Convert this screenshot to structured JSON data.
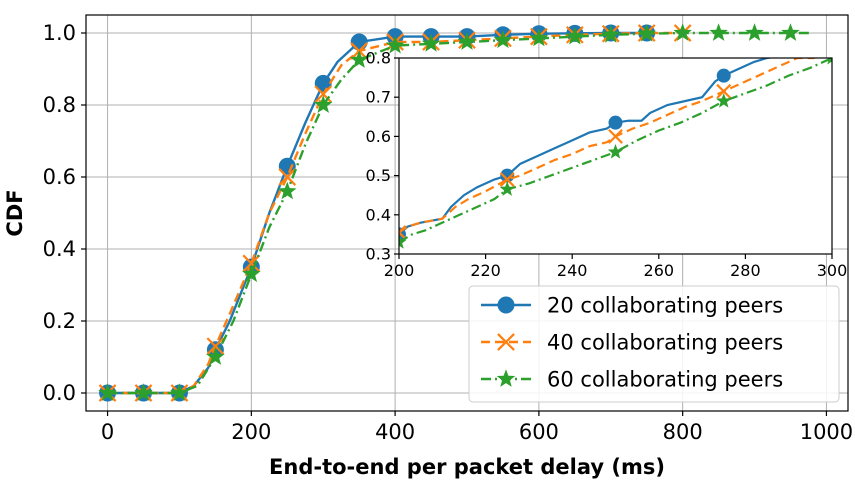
{
  "chart_data": {
    "type": "line",
    "xlabel": "End-to-end per packet delay (ms)",
    "ylabel": "CDF",
    "xlim": [
      -30,
      1030
    ],
    "ylim": [
      -0.05,
      1.05
    ],
    "x_ticks": [
      0,
      200,
      400,
      600,
      800,
      1000
    ],
    "y_ticks": [
      0.0,
      0.2,
      0.4,
      0.6,
      0.8,
      1.0
    ],
    "x_tick_labels": [
      "0",
      "200",
      "400",
      "600",
      "800",
      "1000"
    ],
    "y_tick_labels": [
      "0.0",
      "0.2",
      "0.4",
      "0.6",
      "0.8",
      "1.0"
    ],
    "grid": true,
    "legend_position": "bottom-right",
    "series": [
      {
        "name": "20 collaborating peers",
        "color": "#1f77b4",
        "line_style": "solid",
        "marker": "circle",
        "points": [
          [
            0,
            0
          ],
          [
            50,
            0
          ],
          [
            100,
            0
          ],
          [
            120,
            0.02
          ],
          [
            140,
            0.07
          ],
          [
            150,
            0.12
          ],
          [
            170,
            0.2
          ],
          [
            200,
            0.35
          ],
          [
            225,
            0.5
          ],
          [
            250,
            0.63
          ],
          [
            275,
            0.75
          ],
          [
            300,
            0.86
          ],
          [
            320,
            0.92
          ],
          [
            350,
            0.975
          ],
          [
            400,
            0.99
          ],
          [
            450,
            0.99
          ],
          [
            500,
            0.99
          ],
          [
            550,
            0.995
          ],
          [
            600,
            0.998
          ],
          [
            650,
            0.999
          ],
          [
            700,
            1.0
          ],
          [
            750,
            1.0
          ]
        ],
        "markers_x": [
          0,
          50,
          100,
          150,
          200,
          250,
          300,
          350,
          400,
          450,
          500,
          550,
          600,
          650,
          700,
          750
        ]
      },
      {
        "name": "40 collaborating peers",
        "color": "#ff7f0e",
        "line_style": "dashed",
        "marker": "x",
        "points": [
          [
            0,
            0
          ],
          [
            50,
            0
          ],
          [
            100,
            0
          ],
          [
            120,
            0.02
          ],
          [
            140,
            0.08
          ],
          [
            150,
            0.13
          ],
          [
            170,
            0.22
          ],
          [
            200,
            0.36
          ],
          [
            225,
            0.5
          ],
          [
            250,
            0.6
          ],
          [
            275,
            0.72
          ],
          [
            300,
            0.83
          ],
          [
            325,
            0.91
          ],
          [
            350,
            0.95
          ],
          [
            400,
            0.975
          ],
          [
            450,
            0.975
          ],
          [
            500,
            0.98
          ],
          [
            550,
            0.985
          ],
          [
            600,
            0.99
          ],
          [
            650,
            0.995
          ],
          [
            700,
            0.998
          ],
          [
            750,
            1.0
          ],
          [
            800,
            1.0
          ]
        ],
        "markers_x": [
          0,
          50,
          100,
          150,
          200,
          250,
          300,
          350,
          400,
          450,
          500,
          550,
          600,
          650,
          700,
          750,
          800
        ]
      },
      {
        "name": "60 collaborating peers",
        "color": "#2ca02c",
        "line_style": "dashdot",
        "marker": "star",
        "points": [
          [
            0,
            0
          ],
          [
            50,
            0
          ],
          [
            100,
            0
          ],
          [
            125,
            0.02
          ],
          [
            150,
            0.1
          ],
          [
            175,
            0.2
          ],
          [
            200,
            0.33
          ],
          [
            225,
            0.46
          ],
          [
            250,
            0.56
          ],
          [
            275,
            0.69
          ],
          [
            300,
            0.8
          ],
          [
            325,
            0.87
          ],
          [
            350,
            0.925
          ],
          [
            400,
            0.965
          ],
          [
            450,
            0.97
          ],
          [
            500,
            0.975
          ],
          [
            550,
            0.98
          ],
          [
            600,
            0.985
          ],
          [
            650,
            0.99
          ],
          [
            700,
            0.995
          ],
          [
            750,
            0.998
          ],
          [
            800,
            1.0
          ],
          [
            850,
            1.0
          ],
          [
            900,
            1.0
          ],
          [
            950,
            1.0
          ],
          [
            980,
            1.0
          ]
        ],
        "markers_x": [
          0,
          50,
          100,
          150,
          200,
          250,
          300,
          350,
          400,
          450,
          500,
          550,
          600,
          650,
          700,
          750,
          800,
          850,
          900,
          950
        ]
      }
    ],
    "inset": {
      "xlim": [
        200,
        300
      ],
      "ylim": [
        0.3,
        0.8
      ],
      "x_ticks": [
        200,
        220,
        240,
        260,
        280,
        300
      ],
      "y_ticks": [
        0.3,
        0.4,
        0.5,
        0.6,
        0.7,
        0.8
      ],
      "x_tick_labels": [
        "200",
        "220",
        "240",
        "260",
        "280",
        "300"
      ],
      "y_tick_labels": [
        "0.3",
        "0.4",
        "0.5",
        "0.6",
        "0.7",
        "0.8"
      ],
      "series": [
        {
          "name": "20 collaborating peers",
          "points": [
            [
              200,
              0.35
            ],
            [
              202,
              0.37
            ],
            [
              205,
              0.38
            ],
            [
              210,
              0.39
            ],
            [
              212,
              0.42
            ],
            [
              215,
              0.45
            ],
            [
              218,
              0.47
            ],
            [
              222,
              0.49
            ],
            [
              225,
              0.5
            ],
            [
              228,
              0.53
            ],
            [
              232,
              0.55
            ],
            [
              236,
              0.57
            ],
            [
              240,
              0.59
            ],
            [
              244,
              0.61
            ],
            [
              248,
              0.62
            ],
            [
              250,
              0.635
            ],
            [
              253,
              0.64
            ],
            [
              256,
              0.64
            ],
            [
              258,
              0.66
            ],
            [
              262,
              0.68
            ],
            [
              266,
              0.69
            ],
            [
              270,
              0.7
            ],
            [
              273,
              0.74
            ],
            [
              275,
              0.755
            ],
            [
              278,
              0.77
            ],
            [
              282,
              0.79
            ],
            [
              285,
              0.8
            ],
            [
              290,
              0.81
            ]
          ],
          "markers": [
            [
              200,
              0.35
            ],
            [
              225,
              0.5
            ],
            [
              250,
              0.635
            ],
            [
              275,
              0.755
            ]
          ]
        },
        {
          "name": "40 collaborating peers",
          "points": [
            [
              200,
              0.355
            ],
            [
              202,
              0.37
            ],
            [
              205,
              0.38
            ],
            [
              210,
              0.39
            ],
            [
              213,
              0.42
            ],
            [
              216,
              0.44
            ],
            [
              220,
              0.46
            ],
            [
              225,
              0.49
            ],
            [
              228,
              0.5
            ],
            [
              232,
              0.52
            ],
            [
              236,
              0.54
            ],
            [
              240,
              0.555
            ],
            [
              244,
              0.575
            ],
            [
              248,
              0.585
            ],
            [
              250,
              0.6
            ],
            [
              254,
              0.62
            ],
            [
              258,
              0.635
            ],
            [
              262,
              0.655
            ],
            [
              266,
              0.675
            ],
            [
              270,
              0.69
            ],
            [
              275,
              0.715
            ],
            [
              280,
              0.74
            ],
            [
              284,
              0.76
            ],
            [
              288,
              0.78
            ],
            [
              292,
              0.8
            ],
            [
              296,
              0.8
            ]
          ],
          "markers": [
            [
              200,
              0.355
            ],
            [
              225,
              0.49
            ],
            [
              250,
              0.6
            ],
            [
              275,
              0.715
            ]
          ]
        },
        {
          "name": "60 collaborating peers",
          "points": [
            [
              200,
              0.33
            ],
            [
              203,
              0.35
            ],
            [
              206,
              0.36
            ],
            [
              210,
              0.38
            ],
            [
              214,
              0.4
            ],
            [
              218,
              0.42
            ],
            [
              222,
              0.44
            ],
            [
              225,
              0.465
            ],
            [
              230,
              0.48
            ],
            [
              235,
              0.5
            ],
            [
              240,
              0.52
            ],
            [
              245,
              0.54
            ],
            [
              250,
              0.56
            ],
            [
              255,
              0.59
            ],
            [
              260,
              0.615
            ],
            [
              265,
              0.635
            ],
            [
              270,
              0.66
            ],
            [
              275,
              0.69
            ],
            [
              280,
              0.71
            ],
            [
              285,
              0.73
            ],
            [
              290,
              0.755
            ],
            [
              295,
              0.775
            ],
            [
              300,
              0.8
            ]
          ],
          "markers": [
            [
              200,
              0.33
            ],
            [
              225,
              0.465
            ],
            [
              250,
              0.56
            ],
            [
              275,
              0.69
            ],
            [
              300,
              0.8
            ]
          ]
        }
      ]
    }
  }
}
